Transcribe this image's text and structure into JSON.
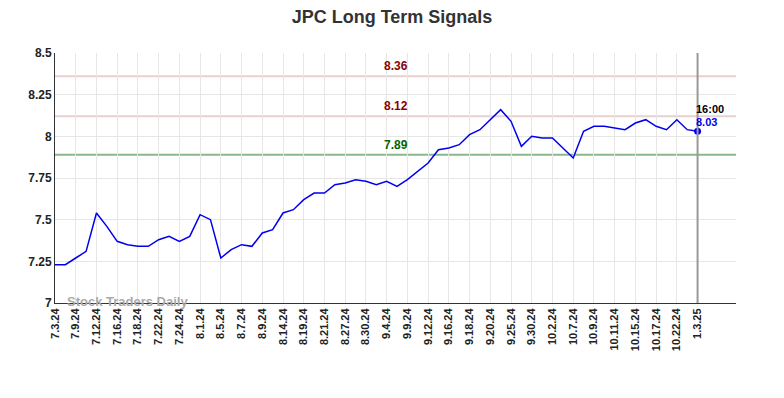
{
  "chart_data": {
    "type": "line",
    "title": "JPC Long Term Signals",
    "watermark": "Stock Traders Daily",
    "end_label": "16:00",
    "categories": [
      "7.3.24",
      null,
      "7.9.24",
      null,
      "7.12.24",
      null,
      "7.16.24",
      null,
      "7.18.24",
      null,
      "7.22.24",
      null,
      "7.24.24",
      null,
      "8.1.24",
      null,
      "8.5.24",
      null,
      "8.7.24",
      null,
      "8.9.24",
      null,
      "8.14.24",
      null,
      "8.19.24",
      null,
      "8.21.24",
      null,
      "8.27.24",
      null,
      "8.30.24",
      null,
      "9.4.24",
      null,
      "9.9.24",
      null,
      "9.12.24",
      null,
      "9.16.24",
      null,
      "9.18.24",
      null,
      "9.20.24",
      null,
      "9.25.24",
      null,
      "9.30.24",
      null,
      "10.2.24",
      null,
      "10.7.24",
      null,
      "10.9.24",
      null,
      "10.11.24",
      null,
      "10.15.24",
      null,
      "10.17.24",
      null,
      "10.22.24",
      null,
      "1.3.25"
    ],
    "values": [
      7.23,
      7.23,
      7.27,
      7.31,
      7.54,
      7.46,
      7.37,
      7.35,
      7.34,
      7.34,
      7.38,
      7.4,
      7.37,
      7.4,
      7.53,
      7.5,
      7.27,
      7.32,
      7.35,
      7.34,
      7.42,
      7.44,
      7.54,
      7.56,
      7.62,
      7.66,
      7.66,
      7.71,
      7.72,
      7.74,
      7.73,
      7.71,
      7.73,
      7.7,
      7.74,
      7.79,
      7.84,
      7.92,
      7.93,
      7.95,
      8.01,
      8.04,
      8.1,
      8.16,
      8.09,
      7.94,
      8.0,
      7.99,
      7.99,
      7.93,
      7.87,
      8.03,
      8.06,
      8.06,
      8.05,
      8.04,
      8.08,
      8.1,
      8.06,
      8.04,
      8.1,
      8.04,
      8.03
    ],
    "color": "#0000ee",
    "levels": [
      {
        "value": 8.36,
        "color": "#8b0000"
      },
      {
        "value": 8.12,
        "color": "#8b0000"
      },
      {
        "value": 7.89,
        "color": "#006400"
      }
    ],
    "ylim": [
      7,
      8.5
    ],
    "yticks": [
      7,
      7.25,
      7.5,
      7.75,
      8,
      8.25,
      8.5
    ],
    "grid": true
  }
}
